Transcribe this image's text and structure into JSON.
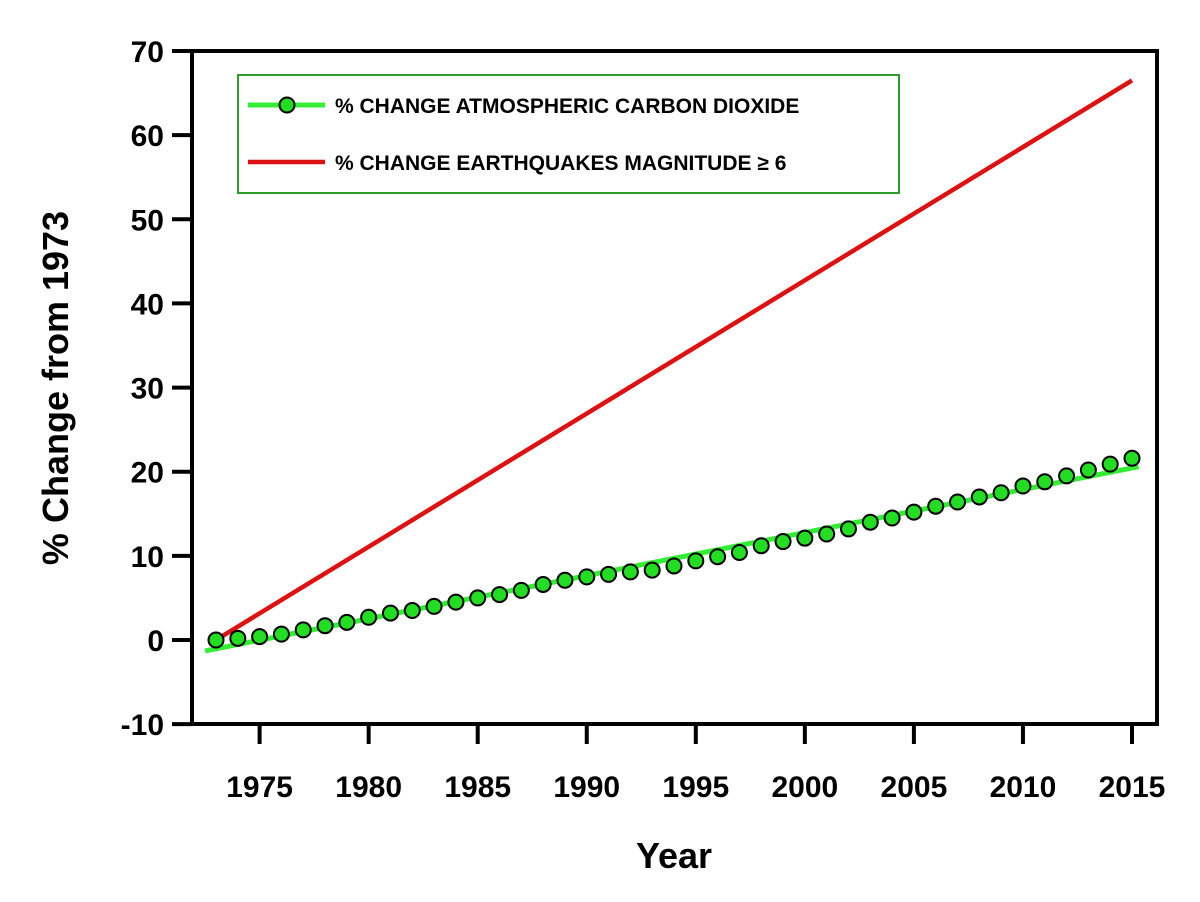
{
  "chart_data": {
    "type": "line",
    "xlabel": "Year",
    "ylabel": "% Change from 1973",
    "xlim": [
      1973,
      2015
    ],
    "ylim": [
      -10,
      70
    ],
    "x_ticks": [
      1975,
      1980,
      1985,
      1990,
      1995,
      2000,
      2005,
      2010,
      2015
    ],
    "y_ticks": [
      -10,
      0,
      10,
      20,
      30,
      40,
      50,
      60,
      70
    ],
    "grid": false,
    "legend_position": "top-left",
    "series": [
      {
        "name": "% CHANGE ATMOSPHERIC CARBON DIOXIDE",
        "kind": "points-with-fit",
        "marker_color": "#22dd22",
        "line_color": "#33ee33",
        "x": [
          1973,
          1974,
          1975,
          1976,
          1977,
          1978,
          1979,
          1980,
          1981,
          1982,
          1983,
          1984,
          1985,
          1986,
          1987,
          1988,
          1989,
          1990,
          1991,
          1992,
          1993,
          1994,
          1995,
          1996,
          1997,
          1998,
          1999,
          2000,
          2001,
          2002,
          2003,
          2004,
          2005,
          2006,
          2007,
          2008,
          2009,
          2010,
          2011,
          2012,
          2013,
          2014,
          2015
        ],
        "values": [
          0,
          0.2,
          0.4,
          0.7,
          1.2,
          1.7,
          2.1,
          2.7,
          3.2,
          3.5,
          4.0,
          4.5,
          5.0,
          5.4,
          5.9,
          6.6,
          7.1,
          7.5,
          7.8,
          8.1,
          8.3,
          8.8,
          9.4,
          9.9,
          10.4,
          11.2,
          11.7,
          12.1,
          12.6,
          13.2,
          14.0,
          14.5,
          15.2,
          15.9,
          16.4,
          17.0,
          17.5,
          18.3,
          18.8,
          19.5,
          20.2,
          20.9,
          21.6
        ],
        "fit": {
          "x": [
            1972.5,
            2015.3
          ],
          "values": [
            -1.3,
            20.6
          ]
        }
      },
      {
        "name": "% CHANGE EARTHQUAKES MAGNITUDE ≥ 6",
        "kind": "line",
        "line_color": "#dd1111",
        "x": [
          1973,
          2015
        ],
        "values": [
          0,
          66.5
        ]
      }
    ]
  }
}
